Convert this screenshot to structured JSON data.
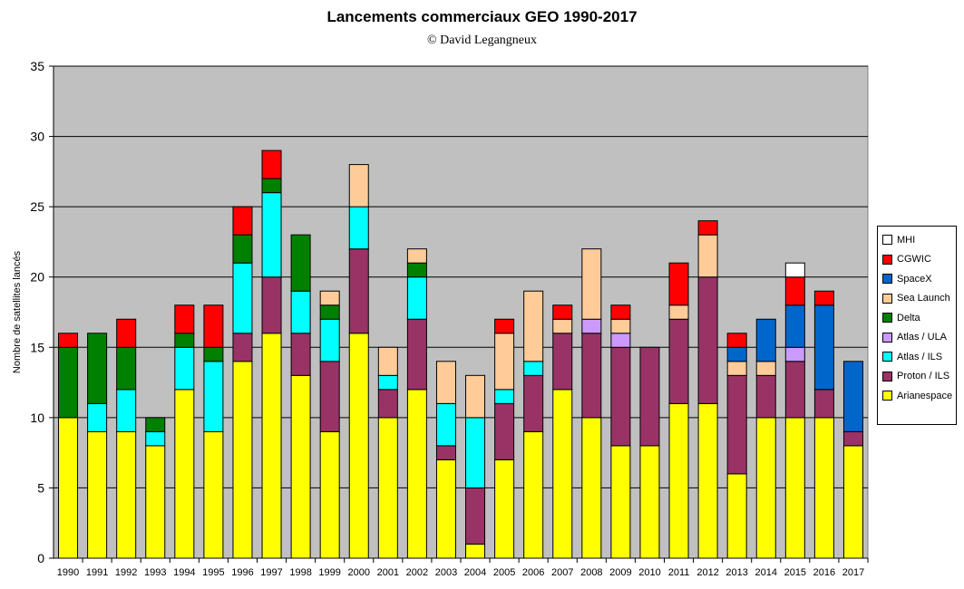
{
  "chart_data": {
    "type": "bar",
    "stacked": true,
    "title": "Lancements commerciaux GEO 1990-2017",
    "subtitle": "© David Legangneux",
    "xlabel": "",
    "ylabel": "Nombre de satellites lancés",
    "ylim": [
      0,
      35
    ],
    "yticks": [
      0,
      5,
      10,
      15,
      20,
      25,
      30,
      35
    ],
    "grid": true,
    "plot_background": "#c0c0c0",
    "legend_position": "right",
    "categories": [
      "1990",
      "1991",
      "1992",
      "1993",
      "1994",
      "1995",
      "1996",
      "1997",
      "1998",
      "1999",
      "2000",
      "2001",
      "2002",
      "2003",
      "2004",
      "2005",
      "2006",
      "2007",
      "2008",
      "2009",
      "2010",
      "2011",
      "2012",
      "2013",
      "2014",
      "2015",
      "2016",
      "2017"
    ],
    "series": [
      {
        "name": "Arianespace",
        "color": "#ffff00",
        "values": [
          10,
          9,
          9,
          8,
          12,
          9,
          14,
          16,
          13,
          9,
          16,
          10,
          12,
          7,
          1,
          7,
          9,
          12,
          10,
          8,
          8,
          11,
          11,
          6,
          10,
          10,
          10,
          8
        ]
      },
      {
        "name": "Proton / ILS",
        "color": "#993366",
        "values": [
          0,
          0,
          0,
          0,
          0,
          0,
          2,
          4,
          3,
          5,
          6,
          2,
          5,
          1,
          4,
          4,
          4,
          4,
          6,
          7,
          7,
          6,
          9,
          7,
          3,
          4,
          2,
          1
        ]
      },
      {
        "name": "Atlas / ILS",
        "color": "#00ffff",
        "values": [
          0,
          2,
          3,
          1,
          3,
          5,
          5,
          6,
          3,
          3,
          3,
          1,
          3,
          3,
          5,
          1,
          1,
          0,
          0,
          0,
          0,
          0,
          0,
          0,
          0,
          0,
          0,
          0
        ]
      },
      {
        "name": "Atlas / ULA",
        "color": "#cc99ff",
        "values": [
          0,
          0,
          0,
          0,
          0,
          0,
          0,
          0,
          0,
          0,
          0,
          0,
          0,
          0,
          0,
          0,
          0,
          0,
          1,
          1,
          0,
          0,
          0,
          0,
          0,
          1,
          0,
          0
        ]
      },
      {
        "name": "Delta",
        "color": "#008000",
        "values": [
          5,
          5,
          3,
          1,
          1,
          1,
          2,
          1,
          4,
          1,
          0,
          0,
          1,
          0,
          0,
          0,
          0,
          0,
          0,
          0,
          0,
          0,
          0,
          0,
          0,
          0,
          0,
          0
        ]
      },
      {
        "name": "Sea Launch",
        "color": "#ffcc99",
        "values": [
          0,
          0,
          0,
          0,
          0,
          0,
          0,
          0,
          0,
          1,
          3,
          2,
          1,
          3,
          3,
          4,
          5,
          1,
          5,
          1,
          0,
          1,
          3,
          1,
          1,
          0,
          0,
          0
        ]
      },
      {
        "name": "SpaceX",
        "color": "#0066cc",
        "values": [
          0,
          0,
          0,
          0,
          0,
          0,
          0,
          0,
          0,
          0,
          0,
          0,
          0,
          0,
          0,
          0,
          0,
          0,
          0,
          0,
          0,
          0,
          0,
          1,
          3,
          3,
          6,
          5
        ]
      },
      {
        "name": "CGWIC",
        "color": "#ff0000",
        "values": [
          1,
          0,
          2,
          0,
          2,
          3,
          2,
          2,
          0,
          0,
          0,
          0,
          0,
          0,
          0,
          1,
          0,
          1,
          0,
          1,
          0,
          3,
          1,
          1,
          0,
          2,
          1,
          0
        ]
      },
      {
        "name": "MHI",
        "color": "#ffffff",
        "values": [
          0,
          0,
          0,
          0,
          0,
          0,
          0,
          0,
          0,
          0,
          0,
          0,
          0,
          0,
          0,
          0,
          0,
          0,
          0,
          0,
          0,
          0,
          0,
          0,
          0,
          1,
          0,
          0
        ]
      }
    ],
    "legend_order": [
      "MHI",
      "CGWIC",
      "SpaceX",
      "Sea Launch",
      "Delta",
      "Atlas / ULA",
      "Atlas / ILS",
      "Proton / ILS",
      "Arianespace"
    ]
  }
}
